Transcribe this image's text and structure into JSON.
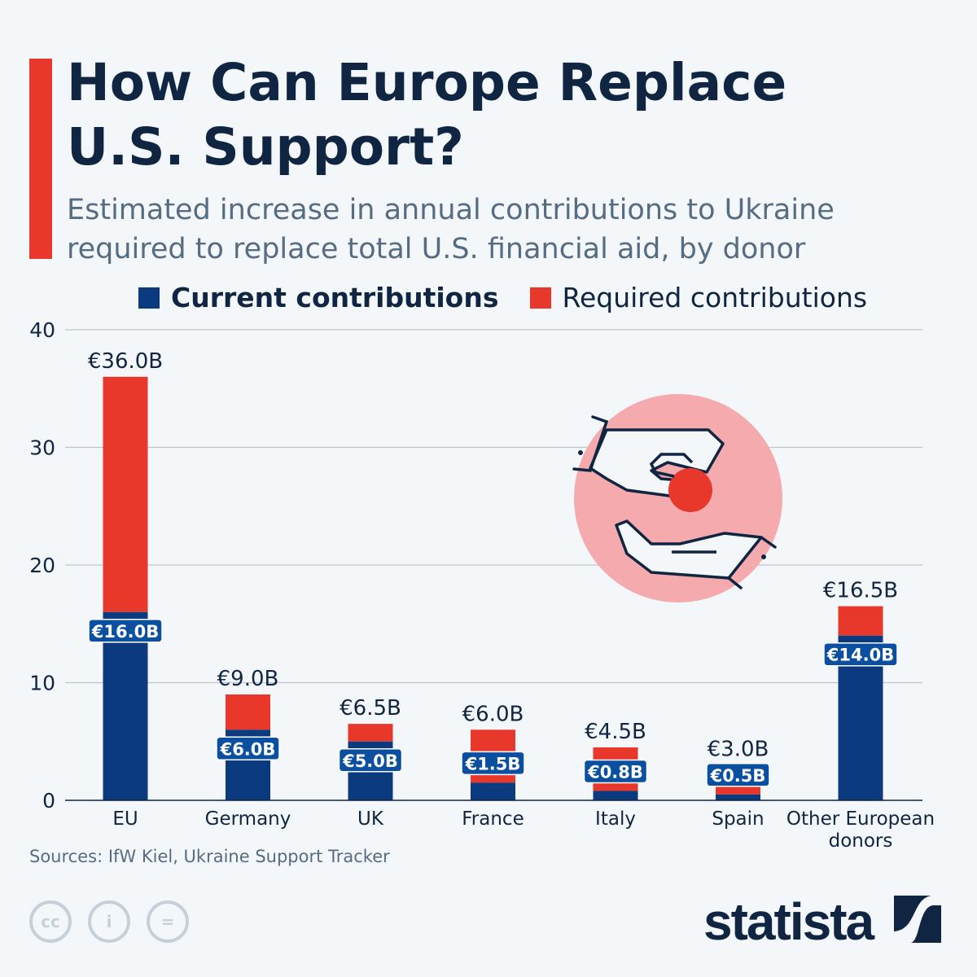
{
  "header": {
    "title": "How Can Europe Replace U.S. Support?",
    "subtitle": "Estimated increase in annual contributions to Ukraine required to replace total U.S. financial aid, by donor"
  },
  "colors": {
    "current": "#0b3a7e",
    "required": "#e8372b",
    "accent": "#e8372b",
    "title": "#0f2541"
  },
  "chart_data": {
    "type": "bar",
    "stacked": true,
    "categories": [
      "EU",
      "Germany",
      "UK",
      "France",
      "Italy",
      "Spain",
      "Other European donors"
    ],
    "series": [
      {
        "name": "Current contributions",
        "values": [
          16.0,
          6.0,
          5.0,
          1.5,
          0.8,
          0.5,
          14.0
        ],
        "labels": [
          "€16.0B",
          "€6.0B",
          "€5.0B",
          "€1.5B",
          "€0.8B",
          "€0.5B",
          "€14.0B"
        ]
      },
      {
        "name": "Required contributions",
        "totals": [
          36.0,
          9.0,
          6.5,
          6.0,
          4.5,
          3.0,
          16.5
        ],
        "labels": [
          "€36.0B",
          "€9.0B",
          "€6.5B",
          "€6.0B",
          "€4.5B",
          "€3.0B",
          "€16.5B"
        ]
      }
    ],
    "ylim": [
      0,
      40
    ],
    "yticks": [
      0,
      10,
      20,
      30,
      40
    ],
    "grid": true,
    "legend": "top"
  },
  "footer": {
    "source": "Sources: IfW Kiel, Ukraine Support Tracker",
    "brand": "statista",
    "cc_icons": [
      "cc-icon",
      "attribution-icon",
      "no-derivatives-icon"
    ]
  },
  "illustration": "hands-coin-icon"
}
